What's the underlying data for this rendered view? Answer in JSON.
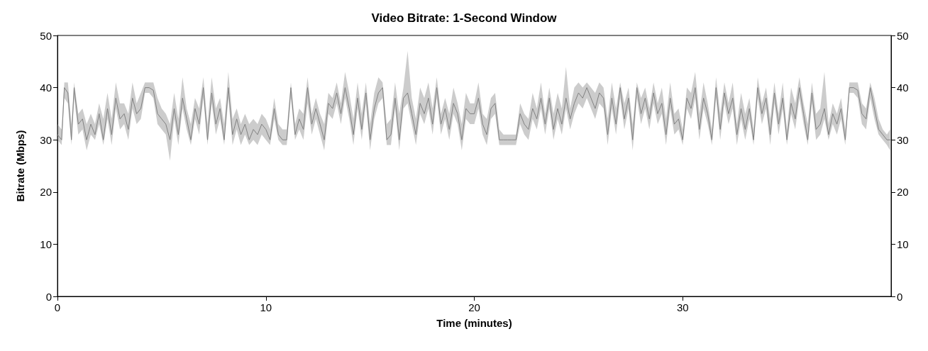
{
  "chart_data": {
    "type": "line",
    "title": "Video Bitrate: 1-Second Window",
    "xlabel": "Time (minutes)",
    "ylabel": "Bitrate (Mbps)",
    "xlim": [
      0,
      40
    ],
    "xticks": [
      0,
      10,
      20,
      30
    ],
    "ylim": [
      0,
      50
    ],
    "yticks": [
      0,
      10,
      20,
      30,
      40,
      50
    ],
    "y2lim": [
      0,
      50
    ],
    "y2ticks": [
      0,
      10,
      20,
      30,
      40,
      50
    ],
    "grid": false,
    "marker": "none",
    "line_style": "solid",
    "x": [
      0,
      0.2,
      0.33,
      0.5,
      0.67,
      0.8,
      1.0,
      1.2,
      1.4,
      1.6,
      1.8,
      2.0,
      2.2,
      2.4,
      2.6,
      2.8,
      3.0,
      3.2,
      3.4,
      3.6,
      3.8,
      4.0,
      4.2,
      4.4,
      4.6,
      4.8,
      5.0,
      5.2,
      5.4,
      5.6,
      5.8,
      6.0,
      6.2,
      6.4,
      6.6,
      6.8,
      7.0,
      7.2,
      7.4,
      7.6,
      7.8,
      8.0,
      8.2,
      8.4,
      8.6,
      8.8,
      9.0,
      9.2,
      9.4,
      9.6,
      9.8,
      10.0,
      10.2,
      10.4,
      10.6,
      10.8,
      11.0,
      11.2,
      11.4,
      11.6,
      11.8,
      12.0,
      12.2,
      12.4,
      12.6,
      12.8,
      13.0,
      13.2,
      13.4,
      13.6,
      13.8,
      14.0,
      14.2,
      14.4,
      14.6,
      14.8,
      15.0,
      15.2,
      15.4,
      15.6,
      15.8,
      16.0,
      16.2,
      16.4,
      16.6,
      16.8,
      17.0,
      17.2,
      17.4,
      17.6,
      17.8,
      18.0,
      18.2,
      18.4,
      18.6,
      18.8,
      19.0,
      19.2,
      19.4,
      19.6,
      19.8,
      20.0,
      20.2,
      20.4,
      20.6,
      20.8,
      21.0,
      21.2,
      21.4,
      21.6,
      21.8,
      22.0,
      22.2,
      22.4,
      22.6,
      22.8,
      23.0,
      23.2,
      23.4,
      23.6,
      23.8,
      24.0,
      24.2,
      24.4,
      24.6,
      24.8,
      25.0,
      25.2,
      25.4,
      25.6,
      25.8,
      26.0,
      26.2,
      26.4,
      26.6,
      26.8,
      27.0,
      27.2,
      27.4,
      27.6,
      27.8,
      28.0,
      28.2,
      28.4,
      28.6,
      28.8,
      29.0,
      29.2,
      29.4,
      29.6,
      29.8,
      30.0,
      30.2,
      30.4,
      30.6,
      30.8,
      31.0,
      31.2,
      31.4,
      31.6,
      31.8,
      32.0,
      32.2,
      32.4,
      32.6,
      32.8,
      33.0,
      33.2,
      33.4,
      33.6,
      33.8,
      34.0,
      34.2,
      34.4,
      34.6,
      34.8,
      35.0,
      35.2,
      35.4,
      35.6,
      35.8,
      36.0,
      36.2,
      36.4,
      36.6,
      36.8,
      37.0,
      37.2,
      37.4,
      37.6,
      37.8,
      38.0,
      38.2,
      38.4,
      38.6,
      38.8,
      39.0,
      39.2,
      39.4,
      39.6,
      39.8,
      39.95
    ],
    "series": [
      {
        "color": "#808080",
        "values": [
          31,
          30,
          40,
          39,
          30,
          40,
          33,
          34,
          30,
          33,
          31,
          35,
          30,
          36,
          31,
          38,
          34,
          35,
          32,
          38,
          35,
          36,
          40,
          40,
          39.5,
          35,
          34,
          33,
          30,
          36,
          31,
          38,
          34,
          30,
          36,
          33,
          40,
          30,
          39,
          33,
          36,
          30,
          40,
          31,
          34,
          31,
          33,
          30,
          32,
          31,
          33,
          32,
          30,
          36,
          31,
          30,
          30,
          40,
          31,
          34,
          32,
          40,
          33,
          36,
          33,
          30,
          37,
          36,
          39,
          35,
          40,
          36,
          31,
          38,
          32,
          39,
          30,
          36,
          39,
          40,
          30,
          31,
          38,
          30,
          38,
          39,
          35,
          31,
          37,
          35,
          38,
          33,
          40,
          33,
          36,
          32,
          37,
          35,
          30,
          36,
          35,
          35,
          38,
          33,
          31,
          36,
          37,
          30,
          30,
          30,
          30,
          30,
          35,
          33,
          32,
          36,
          34,
          38,
          33,
          38,
          32,
          36,
          33,
          38,
          34,
          37,
          39,
          38,
          40,
          38,
          36,
          39,
          38,
          31,
          38,
          33,
          40,
          34,
          38,
          30,
          40,
          35,
          38,
          34,
          39,
          35,
          37,
          31,
          38,
          33,
          34,
          30,
          38,
          36,
          40,
          32,
          38,
          35,
          30,
          40,
          32,
          39,
          35,
          38,
          31,
          36,
          32,
          36,
          30,
          40,
          35,
          38,
          31,
          39,
          33,
          38,
          30,
          37,
          34,
          40,
          35,
          30,
          39,
          32,
          33,
          36,
          31,
          35,
          33,
          36,
          30,
          40,
          40,
          39.5,
          35,
          34,
          40,
          36,
          32,
          31,
          30,
          30
        ],
        "upper": [
          33,
          32,
          41,
          41,
          33,
          41,
          35,
          36,
          33,
          35,
          33,
          37,
          34,
          39,
          34,
          41,
          37,
          37,
          35,
          41,
          37,
          39,
          41,
          41,
          41,
          38,
          36,
          35,
          33,
          39,
          34,
          42,
          36,
          33,
          38,
          36,
          42,
          33,
          42,
          36,
          38,
          33,
          43,
          34,
          36,
          33,
          35,
          33,
          34,
          33,
          35,
          34,
          32,
          38,
          33,
          32,
          32,
          41,
          33,
          36,
          35,
          42,
          35,
          38,
          35,
          33,
          39,
          38,
          41,
          37,
          43,
          39,
          34,
          41,
          35,
          41,
          33,
          39,
          42,
          41,
          33,
          34,
          41,
          35,
          40,
          47,
          38,
          34,
          40,
          38,
          41,
          36,
          42,
          35,
          38,
          35,
          40,
          37,
          33,
          39,
          37,
          37,
          41,
          35,
          34,
          38,
          39,
          32,
          31,
          31,
          31,
          31,
          37,
          35,
          34,
          39,
          36,
          41,
          35,
          40,
          35,
          39,
          36,
          44,
          36,
          40,
          41,
          40,
          41,
          40,
          39,
          41,
          40,
          34,
          41,
          36,
          41,
          37,
          40,
          33,
          41,
          38,
          40,
          36,
          41,
          37,
          40,
          34,
          41,
          35,
          36,
          32,
          40,
          39,
          43,
          35,
          41,
          37,
          32,
          42,
          35,
          41,
          37,
          41,
          33,
          39,
          35,
          38,
          32,
          42,
          37,
          40,
          34,
          41,
          35,
          41,
          32,
          40,
          37,
          42,
          37,
          33,
          41,
          35,
          36,
          43,
          33,
          37,
          35,
          38,
          32,
          41,
          41,
          41,
          37,
          36,
          41,
          38,
          34,
          32,
          31,
          32
        ],
        "lower": [
          30,
          29,
          38,
          37,
          29,
          38,
          31,
          32,
          28,
          31,
          30,
          33,
          29,
          34,
          29,
          36,
          32,
          33,
          30,
          36,
          33,
          34,
          39,
          39,
          38,
          33,
          32,
          31,
          26,
          34,
          29,
          36,
          32,
          29,
          34,
          31,
          38,
          29,
          37,
          31,
          34,
          29,
          38,
          29,
          32,
          29,
          31,
          29,
          30,
          29,
          31,
          30,
          29,
          34,
          30,
          29,
          29,
          38,
          30,
          32,
          30,
          37,
          31,
          34,
          31,
          28,
          35,
          34,
          37,
          33,
          38,
          34,
          29,
          36,
          30,
          37,
          28,
          34,
          37,
          38,
          29,
          29,
          36,
          28,
          36,
          37,
          33,
          29,
          35,
          33,
          36,
          31,
          38,
          31,
          34,
          30,
          35,
          33,
          28,
          34,
          33,
          33,
          36,
          31,
          29,
          34,
          35,
          29,
          29,
          29,
          29,
          29,
          33,
          31,
          30,
          34,
          32,
          36,
          31,
          36,
          30,
          34,
          31,
          36,
          32,
          35,
          37,
          36,
          38,
          36,
          34,
          37,
          36,
          29,
          36,
          31,
          38,
          32,
          36,
          28,
          38,
          33,
          36,
          32,
          37,
          33,
          35,
          29,
          36,
          31,
          32,
          29,
          36,
          34,
          38,
          30,
          36,
          33,
          29,
          38,
          30,
          37,
          33,
          36,
          29,
          34,
          30,
          34,
          29,
          38,
          33,
          36,
          29,
          37,
          31,
          36,
          29,
          35,
          32,
          38,
          33,
          29,
          37,
          30,
          31,
          34,
          30,
          33,
          31,
          34,
          29,
          39,
          39,
          38,
          33,
          32,
          38,
          34,
          31,
          30,
          29,
          28
        ]
      }
    ]
  }
}
